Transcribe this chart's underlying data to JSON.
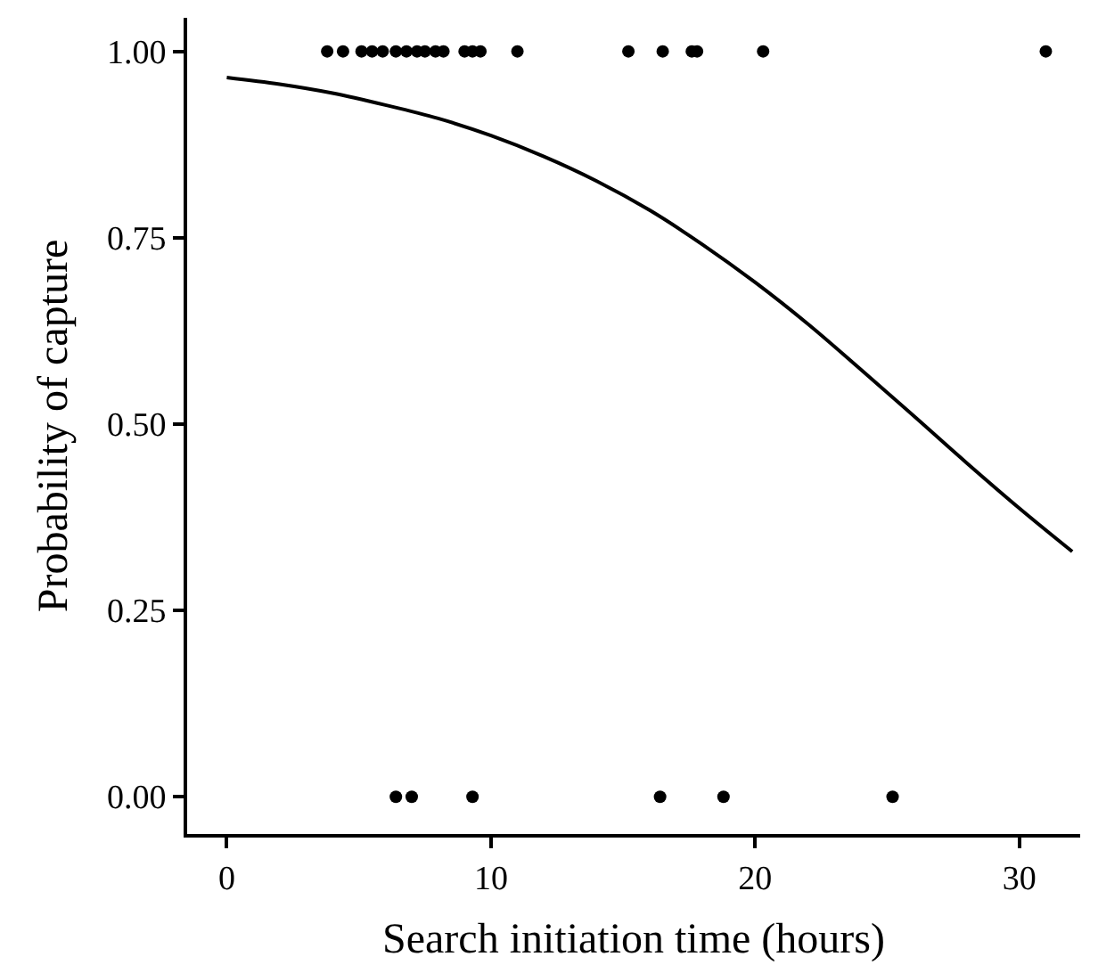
{
  "chart_data": {
    "type": "scatter",
    "xlabel": "Search initiation time (hours)",
    "ylabel": "Probability of capture",
    "xlim": [
      -1.5,
      32.3
    ],
    "ylim": [
      -0.05,
      1.045
    ],
    "xticks": [
      0,
      10,
      20,
      30
    ],
    "yticks": [
      {
        "value": 0,
        "label": "0.00"
      },
      {
        "value": 0.25,
        "label": "0.25"
      },
      {
        "value": 0.5,
        "label": "0.50"
      },
      {
        "value": 0.75,
        "label": "0.75"
      },
      {
        "value": 1,
        "label": "1.00"
      }
    ],
    "marker": "circle",
    "series": [
      {
        "color": "#000000",
        "x": [
          3.8,
          4.4,
          5.1,
          5.5,
          5.9,
          6.4,
          6.8,
          7.2,
          7.5,
          7.9,
          8.2,
          9.0,
          9.3,
          9.6,
          11.0,
          15.2,
          16.5,
          17.6,
          17.8,
          20.3,
          31.0
        ],
        "values": [
          1,
          1,
          1,
          1,
          1,
          1,
          1,
          1,
          1,
          1,
          1,
          1,
          1,
          1,
          1,
          1,
          1,
          1,
          1,
          1,
          1
        ]
      },
      {
        "color": "#000000",
        "x": [
          6.4,
          7.0,
          9.3,
          16.4,
          18.8,
          25.2
        ],
        "values": [
          0,
          0,
          0,
          0,
          0,
          0
        ]
      },
      {
        "type": "line",
        "color": "#000000",
        "marker": "none",
        "x": [
          0,
          2,
          4,
          6,
          8,
          10,
          12,
          14,
          16,
          18,
          20,
          22,
          24,
          26,
          28,
          30,
          32
        ],
        "values": [
          0.965,
          0.956,
          0.944,
          0.928,
          0.91,
          0.887,
          0.859,
          0.826,
          0.787,
          0.741,
          0.69,
          0.634,
          0.573,
          0.511,
          0.448,
          0.387,
          0.329
        ]
      }
    ]
  }
}
